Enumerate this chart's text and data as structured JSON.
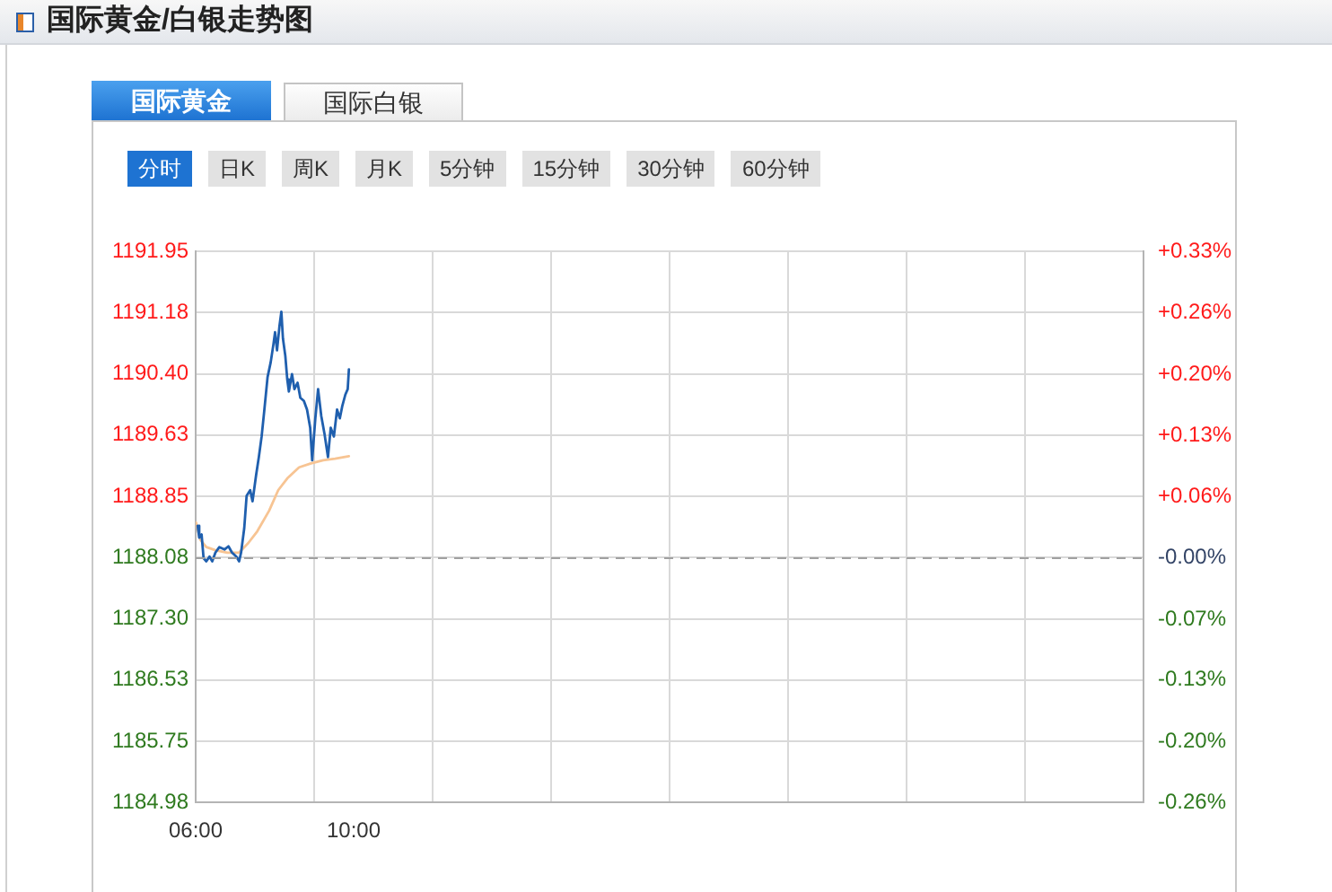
{
  "chart_data": {
    "type": "line",
    "title": "国际黄金/白银走势图",
    "annotations": [
      "国际黄金",
      "国际白银",
      "分时",
      "日K",
      "周K",
      "月K",
      "5分钟",
      "15分钟",
      "30分钟",
      "60分钟"
    ],
    "series": [
      {
        "color": "#1f5fae",
        "x": [
          6.05,
          6.09,
          6.15,
          6.2,
          6.27,
          6.35,
          6.42,
          6.5,
          6.6,
          6.73,
          6.83,
          6.92,
          7.03,
          7.1,
          7.15,
          7.23,
          7.29,
          7.38,
          7.44,
          7.53,
          7.6,
          7.67,
          7.74,
          7.82,
          7.9,
          7.97,
          8.01,
          8.06,
          8.12,
          8.17,
          8.21,
          8.27,
          8.32,
          8.36,
          8.44,
          8.5,
          8.58,
          8.65,
          8.74,
          8.82,
          8.9,
          8.95,
          9.03,
          9.1,
          9.18,
          9.26,
          9.35,
          9.42,
          9.5,
          9.58,
          9.65,
          9.71,
          9.79,
          9.85,
          9.88
        ],
        "values": [
          1188.48,
          1188.33,
          1188.37,
          1188.07,
          1188.03,
          1188.09,
          1188.03,
          1188.14,
          1188.21,
          1188.18,
          1188.22,
          1188.14,
          1188.09,
          1188.03,
          1188.14,
          1188.45,
          1188.86,
          1188.93,
          1188.79,
          1189.12,
          1189.35,
          1189.61,
          1189.95,
          1190.36,
          1190.55,
          1190.78,
          1190.93,
          1190.7,
          1191.0,
          1191.19,
          1190.85,
          1190.63,
          1190.33,
          1190.18,
          1190.4,
          1190.21,
          1190.29,
          1190.1,
          1190.06,
          1189.95,
          1189.72,
          1189.31,
          1189.84,
          1190.21,
          1189.87,
          1189.65,
          1189.35,
          1189.72,
          1189.61,
          1189.95,
          1189.84,
          1189.99,
          1190.14,
          1190.21,
          1190.46
        ]
      },
      {
        "color": "#f7c493",
        "x": [
          6.01,
          6.12,
          6.27,
          6.5,
          6.8,
          7.1,
          7.33,
          7.56,
          7.86,
          8.09,
          8.32,
          8.62,
          8.92,
          9.23,
          9.53,
          9.88
        ],
        "values": [
          1188.52,
          1188.3,
          1188.21,
          1188.17,
          1188.14,
          1188.14,
          1188.26,
          1188.41,
          1188.67,
          1188.93,
          1189.08,
          1189.22,
          1189.27,
          1189.31,
          1189.33,
          1189.36
        ]
      }
    ],
    "xlim": [
      6,
      30
    ],
    "xticks": [
      {
        "value": 6,
        "label": "06:00"
      },
      {
        "value": 9,
        "label": null
      },
      {
        "value": 10,
        "label": "10:00"
      },
      {
        "value": 12,
        "label": null
      },
      {
        "value": 15,
        "label": null
      },
      {
        "value": 18,
        "label": null
      },
      {
        "value": 21,
        "label": null
      },
      {
        "value": 24,
        "label": null
      },
      {
        "value": 27,
        "label": null
      },
      {
        "value": 30,
        "label": null
      }
    ],
    "ylim": [
      1184.98,
      1191.95
    ],
    "yticks": [
      {
        "value": 1184.98,
        "label": "1184.98"
      },
      {
        "value": 1185.75,
        "label": "1185.75"
      },
      {
        "value": 1186.53,
        "label": "1186.53"
      },
      {
        "value": 1187.3,
        "label": "1187.30"
      },
      {
        "value": 1188.08,
        "label": "1188.08"
      },
      {
        "value": 1188.85,
        "label": "1188.85"
      },
      {
        "value": 1189.63,
        "label": "1189.63"
      },
      {
        "value": 1190.4,
        "label": "1190.40"
      },
      {
        "value": 1191.18,
        "label": "1191.18"
      },
      {
        "value": 1191.95,
        "label": "1191.95"
      }
    ],
    "y2lim": [
      -0.261,
      0.326
    ],
    "y2ticks": [
      {
        "value": -0.261,
        "label": "-0.26%"
      },
      {
        "value": -0.196,
        "label": "-0.20%"
      },
      {
        "value": -0.13,
        "label": "-0.13%"
      },
      {
        "value": -0.066,
        "label": "-0.07%"
      },
      {
        "value": 0,
        "label": "-0.00%"
      },
      {
        "value": 0.065,
        "label": "+0.06%"
      },
      {
        "value": 0.13,
        "label": "+0.13%"
      },
      {
        "value": 0.195,
        "label": "+0.20%"
      },
      {
        "value": 0.261,
        "label": "+0.26%"
      },
      {
        "value": 0.326,
        "label": "+0.33%"
      }
    ],
    "ref_lines": [
      {
        "axis": "y",
        "value": 1188.08,
        "color": "#a0a0a0",
        "line_style": "dashed"
      }
    ],
    "grid": true
  }
}
